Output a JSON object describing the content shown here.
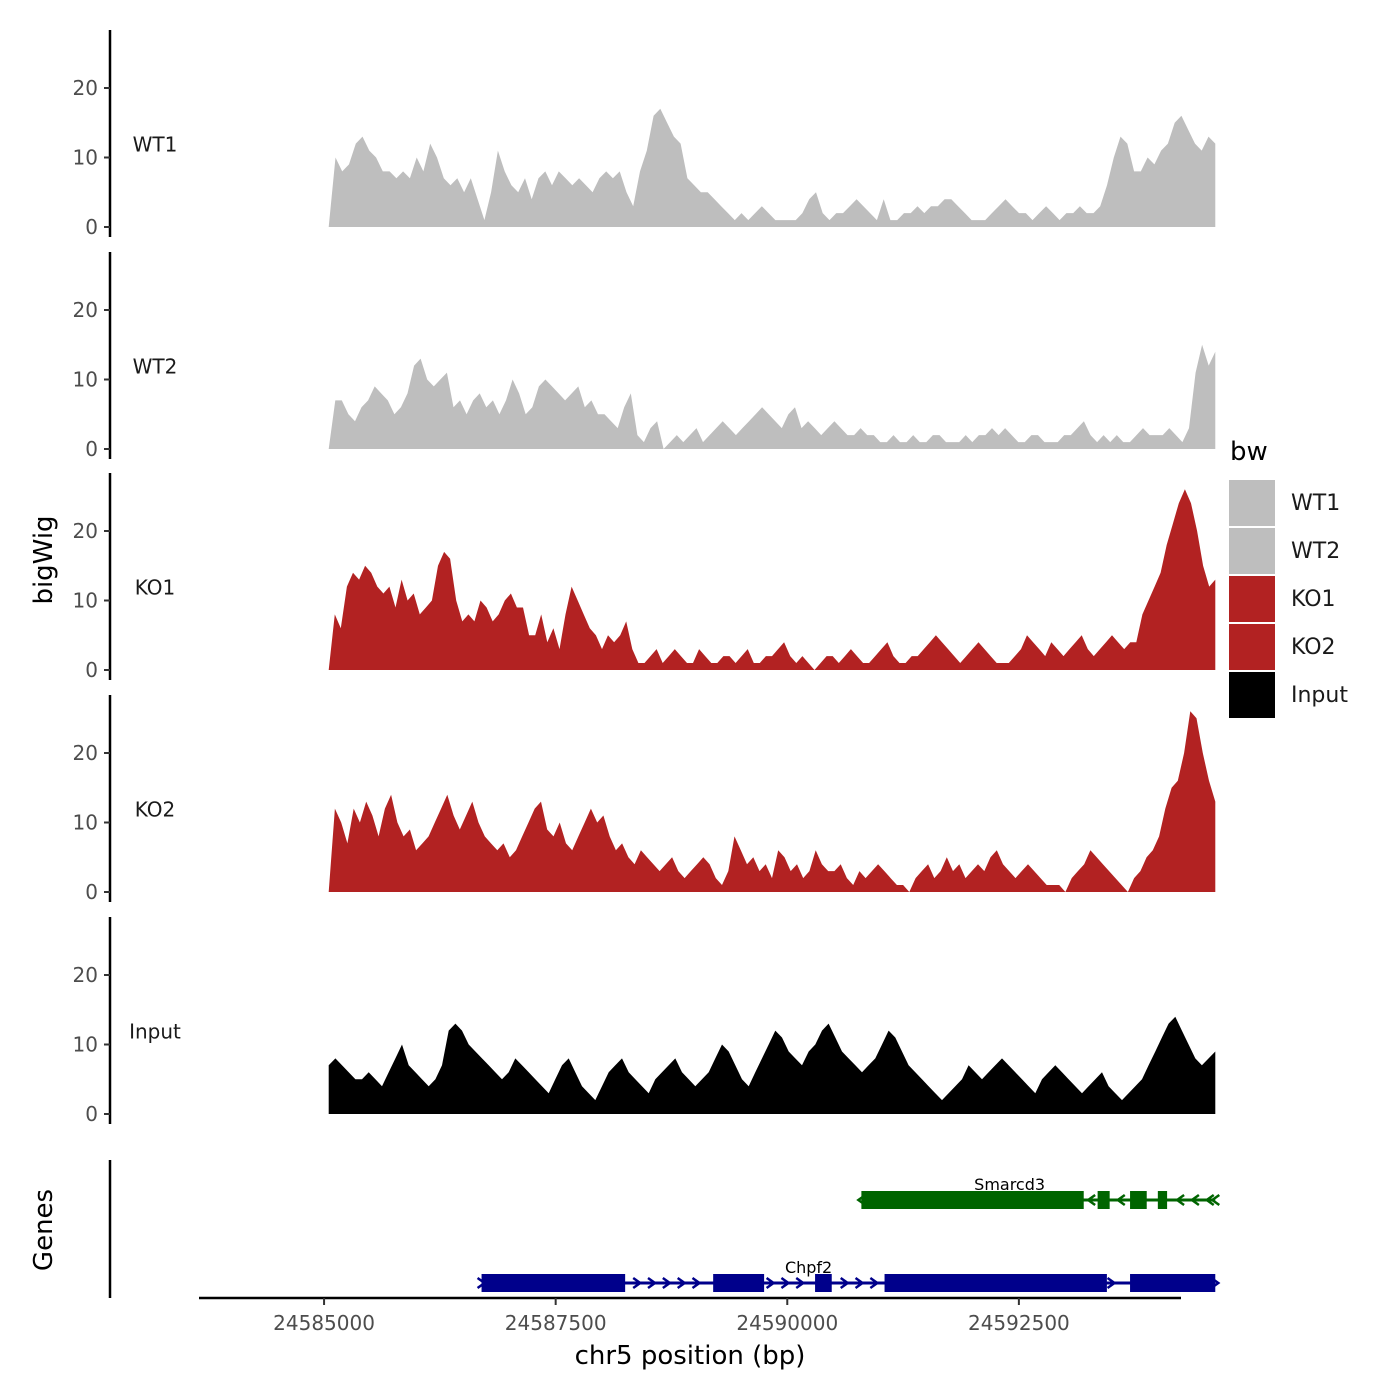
{
  "chart_data": {
    "type": "area",
    "title": "",
    "xlabel": "chr5 position (bp)",
    "ylabel": "bigWig",
    "genes_label": "Genes",
    "xlim": [
      24583650,
      24594250
    ],
    "ylim": [
      0,
      28
    ],
    "x_ticks": [
      24585000,
      24587500,
      24590000,
      24592500
    ],
    "x_tick_labels": [
      "24585000",
      "24587500",
      "24590000",
      "24592500"
    ],
    "y_ticks": [
      0,
      10,
      20
    ],
    "y_tick_labels": [
      "0",
      "10",
      "20"
    ],
    "x_range": [
      24585050,
      24594620
    ],
    "legend": {
      "title": "bw",
      "entries": [
        {
          "label": "WT1",
          "color": "#bebebe"
        },
        {
          "label": "WT2",
          "color": "#bebebe"
        },
        {
          "label": "KO1",
          "color": "#b22222"
        },
        {
          "label": "KO2",
          "color": "#b22222"
        },
        {
          "label": "Input",
          "color": "#000000"
        }
      ]
    },
    "series": [
      {
        "name": "WT1",
        "color": "#bebebe",
        "values": [
          0,
          10,
          8,
          9,
          12,
          13,
          11,
          10,
          8,
          8,
          7,
          8,
          7,
          10,
          8,
          12,
          10,
          7,
          6,
          7,
          5,
          7,
          4,
          1,
          5,
          11,
          8,
          6,
          5,
          7,
          4,
          7,
          8,
          6,
          8,
          7,
          6,
          7,
          6,
          5,
          7,
          8,
          7,
          8,
          5,
          3,
          8,
          11,
          16,
          17,
          15,
          13,
          12,
          7,
          6,
          5,
          5,
          4,
          3,
          2,
          1,
          2,
          1,
          2,
          3,
          2,
          1,
          1,
          1,
          1,
          2,
          4,
          5,
          2,
          1,
          2,
          2,
          3,
          4,
          3,
          2,
          1,
          4,
          1,
          1,
          2,
          2,
          3,
          2,
          3,
          3,
          4,
          4,
          3,
          2,
          1,
          1,
          1,
          2,
          3,
          4,
          3,
          2,
          2,
          1,
          2,
          3,
          2,
          1,
          2,
          2,
          3,
          2,
          2,
          3,
          6,
          10,
          13,
          12,
          8,
          8,
          10,
          9,
          11,
          12,
          15,
          16,
          14,
          12,
          11,
          13,
          12
        ]
      },
      {
        "name": "WT2",
        "color": "#bebebe",
        "values": [
          0,
          7,
          7,
          5,
          4,
          6,
          7,
          9,
          8,
          7,
          5,
          6,
          8,
          12,
          13,
          10,
          9,
          10,
          11,
          6,
          7,
          5,
          7,
          8,
          6,
          7,
          5,
          7,
          10,
          8,
          5,
          6,
          9,
          10,
          9,
          8,
          7,
          8,
          9,
          6,
          7,
          5,
          5,
          4,
          3,
          6,
          8,
          2,
          1,
          3,
          4,
          0,
          1,
          2,
          1,
          2,
          3,
          1,
          2,
          3,
          4,
          3,
          2,
          3,
          4,
          5,
          6,
          5,
          4,
          3,
          5,
          6,
          3,
          4,
          3,
          2,
          3,
          4,
          3,
          2,
          2,
          3,
          2,
          2,
          1,
          1,
          2,
          1,
          1,
          2,
          1,
          1,
          2,
          2,
          1,
          1,
          1,
          2,
          1,
          2,
          2,
          3,
          2,
          3,
          2,
          1,
          1,
          2,
          2,
          1,
          1,
          1,
          2,
          2,
          3,
          4,
          2,
          1,
          2,
          1,
          2,
          1,
          1,
          2,
          3,
          2,
          2,
          2,
          3,
          2,
          1,
          3,
          11,
          15,
          12,
          14
        ]
      },
      {
        "name": "KO1",
        "color": "#b22222",
        "values": [
          0,
          8,
          6,
          12,
          14,
          13,
          15,
          14,
          12,
          11,
          12,
          9,
          13,
          10,
          11,
          8,
          9,
          10,
          15,
          17,
          16,
          10,
          7,
          8,
          7,
          10,
          9,
          7,
          8,
          10,
          11,
          9,
          9,
          5,
          5,
          8,
          4,
          6,
          3,
          8,
          12,
          10,
          8,
          6,
          5,
          3,
          5,
          4,
          5,
          7,
          3,
          1,
          1,
          2,
          3,
          1,
          2,
          3,
          2,
          1,
          1,
          3,
          2,
          1,
          1,
          2,
          2,
          1,
          2,
          3,
          1,
          1,
          2,
          2,
          3,
          4,
          2,
          1,
          2,
          1,
          0,
          1,
          2,
          2,
          1,
          2,
          3,
          2,
          1,
          1,
          2,
          3,
          4,
          2,
          1,
          1,
          2,
          2,
          3,
          4,
          5,
          4,
          3,
          2,
          1,
          2,
          3,
          4,
          3,
          2,
          1,
          1,
          1,
          2,
          3,
          5,
          4,
          3,
          2,
          4,
          3,
          2,
          3,
          4,
          5,
          3,
          2,
          3,
          4,
          5,
          4,
          3,
          4,
          4,
          8,
          10,
          12,
          14,
          18,
          21,
          24,
          26,
          24,
          20,
          15,
          12,
          13
        ]
      },
      {
        "name": "KO2",
        "color": "#b22222",
        "values": [
          0,
          12,
          10,
          7,
          12,
          10,
          13,
          11,
          8,
          12,
          14,
          10,
          8,
          9,
          6,
          7,
          8,
          10,
          12,
          14,
          11,
          9,
          11,
          13,
          10,
          8,
          7,
          6,
          7,
          5,
          6,
          8,
          10,
          12,
          13,
          9,
          8,
          10,
          7,
          6,
          8,
          10,
          12,
          10,
          11,
          8,
          6,
          7,
          5,
          4,
          6,
          5,
          4,
          3,
          4,
          5,
          3,
          2,
          3,
          4,
          5,
          4,
          2,
          1,
          3,
          8,
          6,
          4,
          5,
          3,
          4,
          2,
          6,
          5,
          3,
          4,
          2,
          3,
          6,
          4,
          3,
          3,
          4,
          2,
          1,
          3,
          2,
          3,
          4,
          3,
          2,
          1,
          1,
          0,
          2,
          3,
          4,
          2,
          3,
          5,
          3,
          4,
          2,
          3,
          4,
          3,
          5,
          6,
          4,
          3,
          2,
          3,
          4,
          3,
          2,
          1,
          1,
          1,
          0,
          2,
          3,
          4,
          6,
          5,
          4,
          3,
          2,
          1,
          0,
          2,
          3,
          5,
          6,
          8,
          12,
          15,
          16,
          20,
          26,
          25,
          20,
          16,
          13
        ]
      },
      {
        "name": "Input",
        "color": "#000000",
        "values": [
          7,
          8,
          7,
          6,
          5,
          5,
          6,
          5,
          4,
          6,
          8,
          10,
          7,
          6,
          5,
          4,
          5,
          7,
          12,
          13,
          12,
          10,
          9,
          8,
          7,
          6,
          5,
          6,
          8,
          7,
          6,
          5,
          4,
          3,
          5,
          7,
          8,
          6,
          4,
          3,
          2,
          4,
          6,
          7,
          8,
          6,
          5,
          4,
          3,
          5,
          6,
          7,
          8,
          6,
          5,
          4,
          5,
          6,
          8,
          10,
          9,
          7,
          5,
          4,
          6,
          8,
          10,
          12,
          11,
          9,
          8,
          7,
          9,
          10,
          12,
          13,
          11,
          9,
          8,
          7,
          6,
          7,
          8,
          10,
          12,
          11,
          9,
          7,
          6,
          5,
          4,
          3,
          2,
          3,
          4,
          5,
          7,
          6,
          5,
          6,
          7,
          8,
          7,
          6,
          5,
          4,
          3,
          5,
          6,
          7,
          6,
          5,
          4,
          3,
          4,
          5,
          6,
          4,
          3,
          2,
          3,
          4,
          5,
          7,
          9,
          11,
          13,
          14,
          12,
          10,
          8,
          7,
          8,
          9
        ]
      }
    ],
    "genes": [
      {
        "name": "Smarcd3",
        "strand": "-",
        "color": "#006400",
        "start": 24590800,
        "end": 24594620,
        "exons": [
          [
            24590800,
            24593200
          ],
          [
            24593350,
            24593480
          ],
          [
            24593700,
            24593880
          ],
          [
            24594000,
            24594100
          ]
        ]
      },
      {
        "name": "Chpf2",
        "strand": "+",
        "color": "#00008b",
        "start": 24586700,
        "end": 24594620,
        "exons": [
          [
            24586700,
            24588250
          ],
          [
            24589200,
            24589750
          ],
          [
            24590300,
            24590480
          ],
          [
            24591050,
            24593450
          ],
          [
            24593700,
            24594620
          ]
        ]
      }
    ]
  }
}
